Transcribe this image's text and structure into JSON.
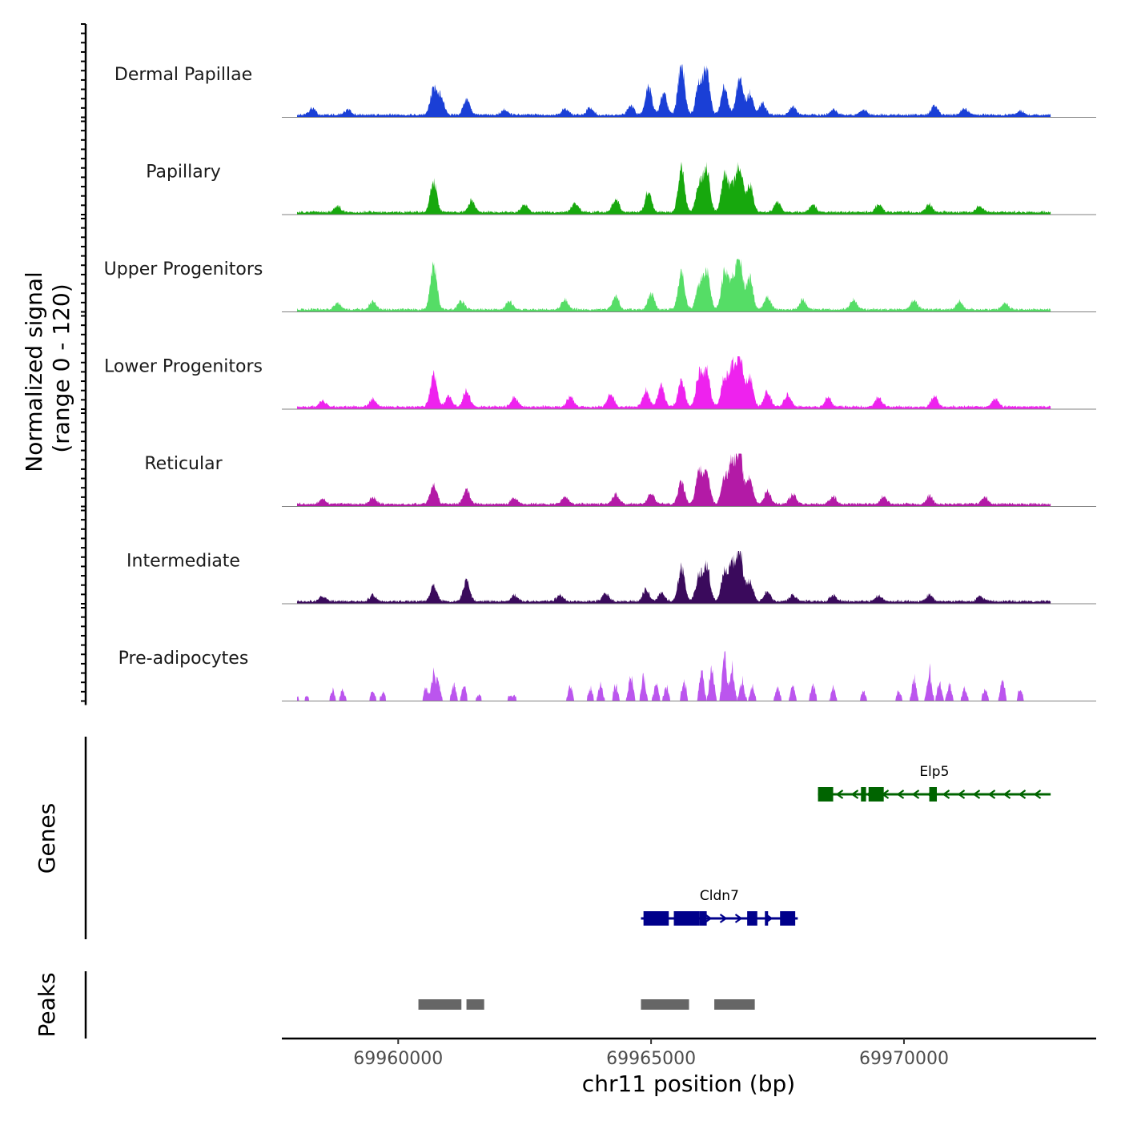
{
  "chart_data": {
    "type": "area",
    "title": "",
    "ylabel_line1": "Normalized signal",
    "ylabel_line2": "(range 0 - 120)",
    "ylim": [
      0,
      120
    ],
    "xlabel": "chr11 position (bp)",
    "xlim": [
      69957700,
      69973800
    ],
    "xticks": [
      69960000,
      69965000,
      69970000
    ],
    "xtick_labels": [
      "69960000",
      "69965000",
      "69970000"
    ],
    "genes_label": "Genes",
    "peaks_label": "Peaks",
    "data_start": 69958000,
    "data_end": 69972900,
    "tracks": [
      {
        "name": "Dermal Papillae",
        "color": "#1a3fd6",
        "max": 100,
        "sparse": false,
        "peaks": [
          [
            69958300,
            12
          ],
          [
            69959000,
            10
          ],
          [
            69960700,
            50
          ],
          [
            69960850,
            35
          ],
          [
            69961350,
            30
          ],
          [
            69962100,
            10
          ],
          [
            69963300,
            12
          ],
          [
            69963800,
            14
          ],
          [
            69964600,
            18
          ],
          [
            69964950,
            55
          ],
          [
            69965250,
            40
          ],
          [
            69965600,
            100
          ],
          [
            69965950,
            60
          ],
          [
            69966100,
            85
          ],
          [
            69966450,
            55
          ],
          [
            69966750,
            75
          ],
          [
            69966950,
            40
          ],
          [
            69967200,
            22
          ],
          [
            69967800,
            15
          ],
          [
            69968600,
            10
          ],
          [
            69969200,
            10
          ],
          [
            69970600,
            18
          ],
          [
            69971200,
            12
          ],
          [
            69972300,
            8
          ]
        ]
      },
      {
        "name": "Papillary",
        "color": "#17a80d",
        "max": 100,
        "sparse": false,
        "peaks": [
          [
            69958800,
            12
          ],
          [
            69960700,
            60
          ],
          [
            69961450,
            22
          ],
          [
            69962500,
            15
          ],
          [
            69963500,
            18
          ],
          [
            69964300,
            25
          ],
          [
            69964950,
            40
          ],
          [
            69965600,
            83
          ],
          [
            69965950,
            55
          ],
          [
            69966100,
            80
          ],
          [
            69966450,
            70
          ],
          [
            69966600,
            45
          ],
          [
            69966750,
            90
          ],
          [
            69966950,
            55
          ],
          [
            69967500,
            20
          ],
          [
            69968200,
            15
          ],
          [
            69969500,
            15
          ],
          [
            69970500,
            15
          ],
          [
            69971500,
            12
          ]
        ]
      },
      {
        "name": "Upper Progenitors",
        "color": "#55dd66",
        "max": 100,
        "sparse": false,
        "peaks": [
          [
            69958800,
            12
          ],
          [
            69959500,
            15
          ],
          [
            69960700,
            85
          ],
          [
            69961250,
            16
          ],
          [
            69962200,
            15
          ],
          [
            69963300,
            18
          ],
          [
            69964300,
            25
          ],
          [
            69965000,
            30
          ],
          [
            69965600,
            70
          ],
          [
            69965950,
            48
          ],
          [
            69966100,
            75
          ],
          [
            69966450,
            70
          ],
          [
            69966600,
            55
          ],
          [
            69966750,
            100
          ],
          [
            69966950,
            60
          ],
          [
            69967300,
            25
          ],
          [
            69968000,
            18
          ],
          [
            69969000,
            20
          ],
          [
            69970200,
            18
          ],
          [
            69971100,
            15
          ],
          [
            69972000,
            12
          ]
        ]
      },
      {
        "name": "Lower Progenitors",
        "color": "#ee22ee",
        "max": 100,
        "sparse": false,
        "peaks": [
          [
            69958500,
            12
          ],
          [
            69959500,
            14
          ],
          [
            69960700,
            62
          ],
          [
            69961000,
            20
          ],
          [
            69961350,
            32
          ],
          [
            69962300,
            18
          ],
          [
            69963400,
            20
          ],
          [
            69964200,
            25
          ],
          [
            69964900,
            32
          ],
          [
            69965200,
            40
          ],
          [
            69965600,
            50
          ],
          [
            69965950,
            60
          ],
          [
            69966100,
            68
          ],
          [
            69966450,
            55
          ],
          [
            69966600,
            70
          ],
          [
            69966750,
            100
          ],
          [
            69966950,
            60
          ],
          [
            69967300,
            30
          ],
          [
            69967700,
            25
          ],
          [
            69968500,
            18
          ],
          [
            69969500,
            18
          ],
          [
            69970600,
            20
          ],
          [
            69971800,
            14
          ]
        ]
      },
      {
        "name": "Reticular",
        "color": "#b31aa6",
        "max": 100,
        "sparse": false,
        "peaks": [
          [
            69958500,
            10
          ],
          [
            69959500,
            12
          ],
          [
            69960700,
            38
          ],
          [
            69961350,
            28
          ],
          [
            69962300,
            12
          ],
          [
            69963300,
            14
          ],
          [
            69964300,
            18
          ],
          [
            69965000,
            20
          ],
          [
            69965600,
            40
          ],
          [
            69965950,
            60
          ],
          [
            69966100,
            55
          ],
          [
            69966450,
            50
          ],
          [
            69966600,
            75
          ],
          [
            69966750,
            100
          ],
          [
            69966950,
            50
          ],
          [
            69967300,
            25
          ],
          [
            69967800,
            18
          ],
          [
            69968600,
            15
          ],
          [
            69969600,
            15
          ],
          [
            69970500,
            15
          ],
          [
            69971600,
            12
          ]
        ]
      },
      {
        "name": "Intermediate",
        "color": "#3a0a5c",
        "max": 100,
        "sparse": false,
        "peaks": [
          [
            69958500,
            10
          ],
          [
            69959500,
            12
          ],
          [
            69960700,
            30
          ],
          [
            69961350,
            40
          ],
          [
            69962300,
            12
          ],
          [
            69963200,
            12
          ],
          [
            69964100,
            15
          ],
          [
            69964900,
            22
          ],
          [
            69965200,
            15
          ],
          [
            69965600,
            65
          ],
          [
            69965950,
            50
          ],
          [
            69966100,
            70
          ],
          [
            69966450,
            55
          ],
          [
            69966600,
            65
          ],
          [
            69966750,
            100
          ],
          [
            69966950,
            40
          ],
          [
            69967300,
            18
          ],
          [
            69967800,
            12
          ],
          [
            69968600,
            12
          ],
          [
            69969500,
            10
          ],
          [
            69970500,
            12
          ],
          [
            69971500,
            10
          ]
        ]
      },
      {
        "name": "Pre-adipocytes",
        "color": "#bb55ee",
        "max": 100,
        "sparse": true,
        "peaks": [
          [
            69958000,
            10
          ],
          [
            69958200,
            10
          ],
          [
            69958700,
            22
          ],
          [
            69958900,
            22
          ],
          [
            69959500,
            20
          ],
          [
            69959700,
            18
          ],
          [
            69960550,
            25
          ],
          [
            69960700,
            50
          ],
          [
            69960800,
            35
          ],
          [
            69961100,
            35
          ],
          [
            69961300,
            30
          ],
          [
            69961600,
            15
          ],
          [
            69962200,
            10
          ],
          [
            69962300,
            10
          ],
          [
            69963400,
            30
          ],
          [
            69963800,
            28
          ],
          [
            69964000,
            30
          ],
          [
            69964300,
            30
          ],
          [
            69964600,
            50
          ],
          [
            69964850,
            45
          ],
          [
            69965100,
            35
          ],
          [
            69965300,
            30
          ],
          [
            69965650,
            40
          ],
          [
            69966000,
            60
          ],
          [
            69966200,
            70
          ],
          [
            69966450,
            100
          ],
          [
            69966600,
            70
          ],
          [
            69966800,
            40
          ],
          [
            69967000,
            30
          ],
          [
            69967500,
            30
          ],
          [
            69967800,
            30
          ],
          [
            69968200,
            35
          ],
          [
            69968600,
            25
          ],
          [
            69969200,
            20
          ],
          [
            69969900,
            20
          ],
          [
            69970200,
            45
          ],
          [
            69970500,
            60
          ],
          [
            69970700,
            35
          ],
          [
            69970900,
            35
          ],
          [
            69971200,
            25
          ],
          [
            69971600,
            25
          ],
          [
            69971950,
            40
          ],
          [
            69972300,
            25
          ]
        ]
      }
    ],
    "genes": [
      {
        "name": "Elp5",
        "color": "#006400",
        "strand": "-",
        "start": 69968300,
        "end": 69972900,
        "row": 0,
        "exons": [
          [
            69968300,
            69968600
          ],
          [
            69969150,
            69969250
          ],
          [
            69969300,
            69969600
          ],
          [
            69970500,
            69970650
          ]
        ]
      },
      {
        "name": "Cldn7",
        "color": "#00008b",
        "strand": "+",
        "start": 69964800,
        "end": 69967900,
        "row": 1,
        "exons": [
          [
            69964850,
            69965350
          ],
          [
            69965450,
            69965950
          ],
          [
            69965950,
            69966100
          ],
          [
            69966900,
            69967100
          ],
          [
            69967250,
            69967300
          ],
          [
            69967550,
            69967850
          ]
        ]
      }
    ],
    "peak_regions": [
      [
        69960400,
        69961250
      ],
      [
        69961350,
        69961700
      ],
      [
        69964800,
        69965750
      ],
      [
        69966250,
        69967050
      ]
    ]
  }
}
